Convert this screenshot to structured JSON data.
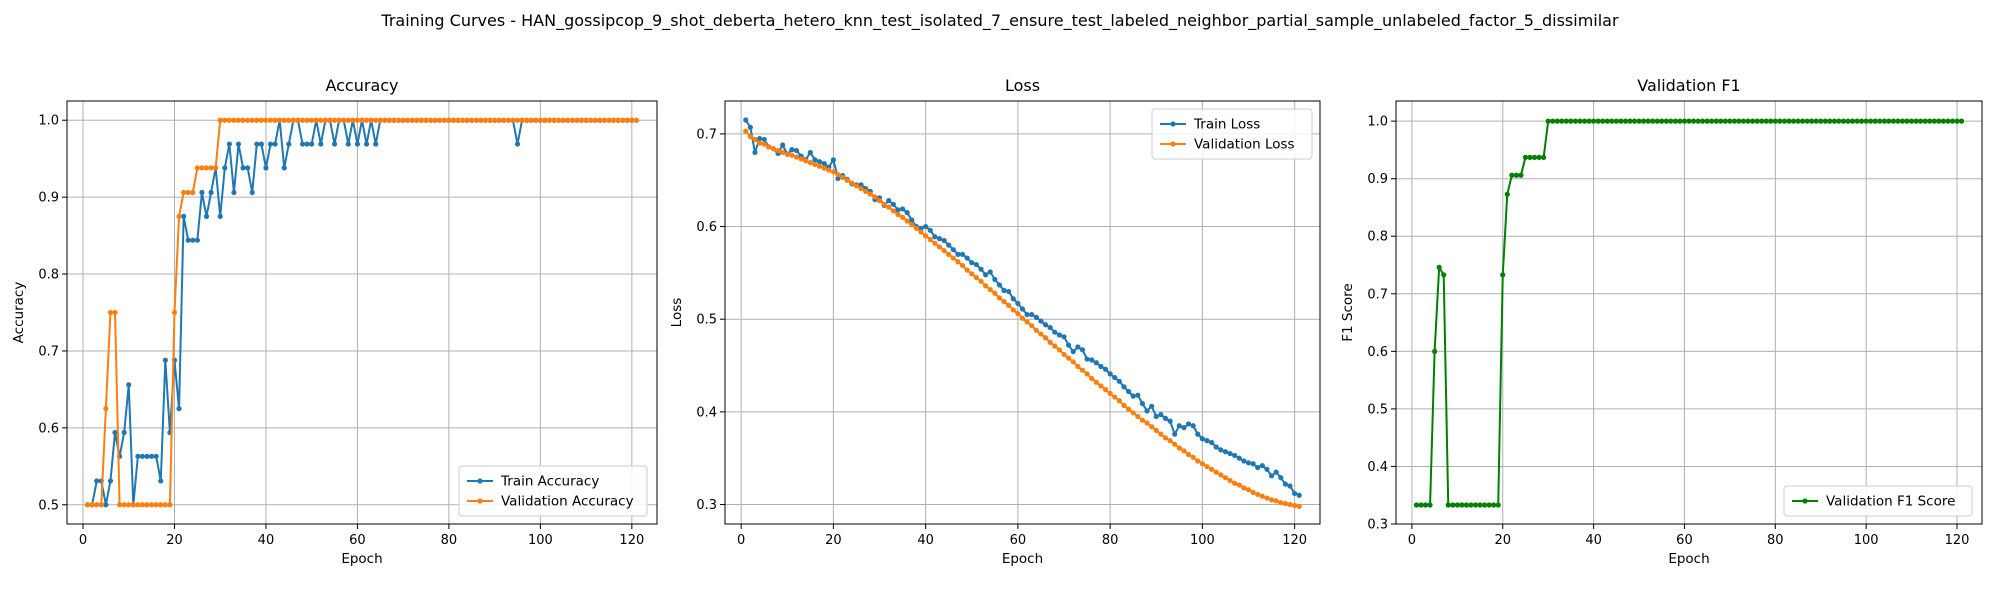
{
  "figure": {
    "title": "Training Curves - HAN_gossipcop_9_shot_deberta_hetero_knn_test_isolated_7_ensure_test_labeled_neighbor_partial_sample_unlabeled_factor_5_dissimilar"
  },
  "colors": {
    "train": "#1f77b4",
    "validation": "#ff7f0e",
    "f1": "#008000",
    "grid": "#b0b0b0"
  },
  "chart_data": [
    {
      "type": "line",
      "title": "Accuracy",
      "xlabel": "Epoch",
      "ylabel": "Accuracy",
      "xlim": [
        -3.5,
        125.5
      ],
      "ylim": [
        0.475,
        1.025
      ],
      "xticks": [
        0,
        20,
        40,
        60,
        80,
        100,
        120
      ],
      "yticks": [
        0.5,
        0.6,
        0.7,
        0.8,
        0.9,
        1.0
      ],
      "ytick_labels": [
        "0.5",
        "0.6",
        "0.7",
        "0.8",
        "0.9",
        "1.0"
      ],
      "grid": true,
      "legend_position": "lower-right",
      "series": [
        {
          "name": "Train Accuracy",
          "color": "#1f77b4",
          "x_start": 1,
          "values": [
            0.5,
            0.5,
            0.531,
            0.531,
            0.5,
            0.531,
            0.594,
            0.563,
            0.594,
            0.656,
            0.5,
            0.563,
            0.563,
            0.563,
            0.563,
            0.563,
            0.531,
            0.688,
            0.594,
            0.688,
            0.625,
            0.875,
            0.844,
            0.844,
            0.844,
            0.906,
            0.875,
            0.906,
            0.938,
            0.875,
            0.938,
            0.969,
            0.906,
            0.969,
            0.938,
            0.938,
            0.906,
            0.969,
            0.969,
            0.938,
            0.969,
            0.969,
            1.0,
            0.938,
            0.969,
            1.0,
            1.0,
            0.969,
            0.969,
            0.969,
            1.0,
            0.969,
            1.0,
            1.0,
            0.969,
            1.0,
            1.0,
            0.969,
            1.0,
            0.969,
            1.0,
            0.969,
            1.0,
            0.969,
            1.0,
            1.0,
            1.0,
            1.0,
            1.0,
            1.0,
            1.0,
            1.0,
            1.0,
            1.0,
            1.0,
            1.0,
            1.0,
            1.0,
            1.0,
            1.0,
            1.0,
            1.0,
            1.0,
            1.0,
            1.0,
            1.0,
            1.0,
            1.0,
            1.0,
            1.0,
            1.0,
            1.0,
            1.0,
            1.0,
            0.969,
            1.0,
            1.0,
            1.0,
            1.0,
            1.0,
            1.0,
            1.0,
            1.0,
            1.0,
            1.0,
            1.0,
            1.0,
            1.0,
            1.0,
            1.0,
            1.0,
            1.0,
            1.0,
            1.0,
            1.0,
            1.0,
            1.0,
            1.0,
            1.0,
            1.0,
            1.0
          ]
        },
        {
          "name": "Validation Accuracy",
          "color": "#ff7f0e",
          "x_start": 1,
          "values": [
            0.5,
            0.5,
            0.5,
            0.5,
            0.625,
            0.75,
            0.75,
            0.5,
            0.5,
            0.5,
            0.5,
            0.5,
            0.5,
            0.5,
            0.5,
            0.5,
            0.5,
            0.5,
            0.5,
            0.75,
            0.875,
            0.906,
            0.906,
            0.906,
            0.938,
            0.938,
            0.938,
            0.938,
            0.938,
            1.0,
            1.0,
            1.0,
            1.0,
            1.0,
            1.0,
            1.0,
            1.0,
            1.0,
            1.0,
            1.0,
            1.0,
            1.0,
            1.0,
            1.0,
            1.0,
            1.0,
            1.0,
            1.0,
            1.0,
            1.0,
            1.0,
            1.0,
            1.0,
            1.0,
            1.0,
            1.0,
            1.0,
            1.0,
            1.0,
            1.0,
            1.0,
            1.0,
            1.0,
            1.0,
            1.0,
            1.0,
            1.0,
            1.0,
            1.0,
            1.0,
            1.0,
            1.0,
            1.0,
            1.0,
            1.0,
            1.0,
            1.0,
            1.0,
            1.0,
            1.0,
            1.0,
            1.0,
            1.0,
            1.0,
            1.0,
            1.0,
            1.0,
            1.0,
            1.0,
            1.0,
            1.0,
            1.0,
            1.0,
            1.0,
            1.0,
            1.0,
            1.0,
            1.0,
            1.0,
            1.0,
            1.0,
            1.0,
            1.0,
            1.0,
            1.0,
            1.0,
            1.0,
            1.0,
            1.0,
            1.0,
            1.0,
            1.0,
            1.0,
            1.0,
            1.0,
            1.0,
            1.0,
            1.0,
            1.0,
            1.0,
            1.0
          ]
        }
      ]
    },
    {
      "type": "line",
      "title": "Loss",
      "xlabel": "Epoch",
      "ylabel": "Loss",
      "xlim": [
        -3.5,
        125.5
      ],
      "ylim": [
        0.279,
        0.7355
      ],
      "xticks": [
        0,
        20,
        40,
        60,
        80,
        100,
        120
      ],
      "yticks": [
        0.3,
        0.4,
        0.5,
        0.6,
        0.7
      ],
      "ytick_labels": [
        "0.3",
        "0.4",
        "0.5",
        "0.6",
        "0.7"
      ],
      "grid": true,
      "legend_position": "upper-right",
      "series": [
        {
          "name": "Train Loss",
          "color": "#1f77b4",
          "x_start": 1,
          "values": [
            0.715,
            0.707,
            0.68,
            0.695,
            0.694,
            0.686,
            0.684,
            0.679,
            0.688,
            0.678,
            0.683,
            0.682,
            0.676,
            0.672,
            0.68,
            0.672,
            0.67,
            0.668,
            0.664,
            0.672,
            0.652,
            0.655,
            0.651,
            0.646,
            0.645,
            0.645,
            0.641,
            0.638,
            0.629,
            0.631,
            0.623,
            0.628,
            0.624,
            0.618,
            0.619,
            0.615,
            0.607,
            0.6,
            0.598,
            0.6,
            0.596,
            0.589,
            0.587,
            0.585,
            0.58,
            0.575,
            0.57,
            0.57,
            0.566,
            0.561,
            0.559,
            0.554,
            0.548,
            0.551,
            0.543,
            0.537,
            0.531,
            0.53,
            0.522,
            0.517,
            0.511,
            0.505,
            0.505,
            0.502,
            0.498,
            0.494,
            0.491,
            0.486,
            0.483,
            0.481,
            0.472,
            0.465,
            0.47,
            0.467,
            0.457,
            0.456,
            0.453,
            0.449,
            0.446,
            0.441,
            0.437,
            0.433,
            0.427,
            0.422,
            0.417,
            0.418,
            0.409,
            0.401,
            0.406,
            0.395,
            0.397,
            0.393,
            0.39,
            0.376,
            0.385,
            0.383,
            0.387,
            0.385,
            0.376,
            0.371,
            0.369,
            0.367,
            0.362,
            0.359,
            0.357,
            0.355,
            0.353,
            0.35,
            0.347,
            0.345,
            0.344,
            0.34,
            0.342,
            0.338,
            0.331,
            0.335,
            0.329,
            0.322,
            0.32,
            0.312,
            0.31
          ]
        },
        {
          "name": "Validation Loss",
          "color": "#ff7f0e",
          "x_start": 1,
          "values": [
            0.703,
            0.697,
            0.694,
            0.69,
            0.689,
            0.686,
            0.684,
            0.682,
            0.68,
            0.678,
            0.677,
            0.675,
            0.673,
            0.671,
            0.669,
            0.667,
            0.665,
            0.663,
            0.661,
            0.659,
            0.656,
            0.653,
            0.65,
            0.647,
            0.644,
            0.641,
            0.638,
            0.635,
            0.632,
            0.628,
            0.624,
            0.621,
            0.617,
            0.613,
            0.61,
            0.606,
            0.602,
            0.598,
            0.594,
            0.59,
            0.586,
            0.582,
            0.578,
            0.574,
            0.57,
            0.566,
            0.562,
            0.558,
            0.553,
            0.549,
            0.545,
            0.541,
            0.536,
            0.532,
            0.528,
            0.523,
            0.519,
            0.515,
            0.51,
            0.506,
            0.501,
            0.497,
            0.493,
            0.488,
            0.484,
            0.48,
            0.475,
            0.471,
            0.467,
            0.462,
            0.458,
            0.454,
            0.449,
            0.445,
            0.441,
            0.436,
            0.432,
            0.428,
            0.424,
            0.42,
            0.416,
            0.412,
            0.407,
            0.403,
            0.399,
            0.395,
            0.391,
            0.388,
            0.384,
            0.38,
            0.376,
            0.372,
            0.369,
            0.365,
            0.361,
            0.358,
            0.354,
            0.351,
            0.347,
            0.344,
            0.341,
            0.338,
            0.335,
            0.332,
            0.329,
            0.326,
            0.323,
            0.321,
            0.318,
            0.316,
            0.313,
            0.311,
            0.309,
            0.307,
            0.305,
            0.304,
            0.302,
            0.301,
            0.3,
            0.299,
            0.298
          ]
        }
      ]
    },
    {
      "type": "line",
      "title": "Validation F1",
      "xlabel": "Epoch",
      "ylabel": "F1 Score",
      "xlim": [
        -3.5,
        125.5
      ],
      "ylim": [
        0.3,
        1.035
      ],
      "xticks": [
        0,
        20,
        40,
        60,
        80,
        100,
        120
      ],
      "yticks": [
        0.3,
        0.4,
        0.5,
        0.6,
        0.7,
        0.8,
        0.9,
        1.0
      ],
      "ytick_labels": [
        "0.3",
        "0.4",
        "0.5",
        "0.6",
        "0.7",
        "0.8",
        "0.9",
        "1.0"
      ],
      "grid": true,
      "legend_position": "lower-right",
      "series": [
        {
          "name": "Validation F1 Score",
          "color": "#008000",
          "x_start": 1,
          "values": [
            0.333,
            0.333,
            0.333,
            0.333,
            0.6,
            0.746,
            0.733,
            0.333,
            0.333,
            0.333,
            0.333,
            0.333,
            0.333,
            0.333,
            0.333,
            0.333,
            0.333,
            0.333,
            0.333,
            0.733,
            0.873,
            0.906,
            0.906,
            0.906,
            0.937,
            0.937,
            0.937,
            0.937,
            0.937,
            1.0,
            1.0,
            1.0,
            1.0,
            1.0,
            1.0,
            1.0,
            1.0,
            1.0,
            1.0,
            1.0,
            1.0,
            1.0,
            1.0,
            1.0,
            1.0,
            1.0,
            1.0,
            1.0,
            1.0,
            1.0,
            1.0,
            1.0,
            1.0,
            1.0,
            1.0,
            1.0,
            1.0,
            1.0,
            1.0,
            1.0,
            1.0,
            1.0,
            1.0,
            1.0,
            1.0,
            1.0,
            1.0,
            1.0,
            1.0,
            1.0,
            1.0,
            1.0,
            1.0,
            1.0,
            1.0,
            1.0,
            1.0,
            1.0,
            1.0,
            1.0,
            1.0,
            1.0,
            1.0,
            1.0,
            1.0,
            1.0,
            1.0,
            1.0,
            1.0,
            1.0,
            1.0,
            1.0,
            1.0,
            1.0,
            1.0,
            1.0,
            1.0,
            1.0,
            1.0,
            1.0,
            1.0,
            1.0,
            1.0,
            1.0,
            1.0,
            1.0,
            1.0,
            1.0,
            1.0,
            1.0,
            1.0,
            1.0,
            1.0,
            1.0,
            1.0,
            1.0,
            1.0,
            1.0,
            1.0,
            1.0,
            1.0
          ]
        }
      ]
    }
  ]
}
